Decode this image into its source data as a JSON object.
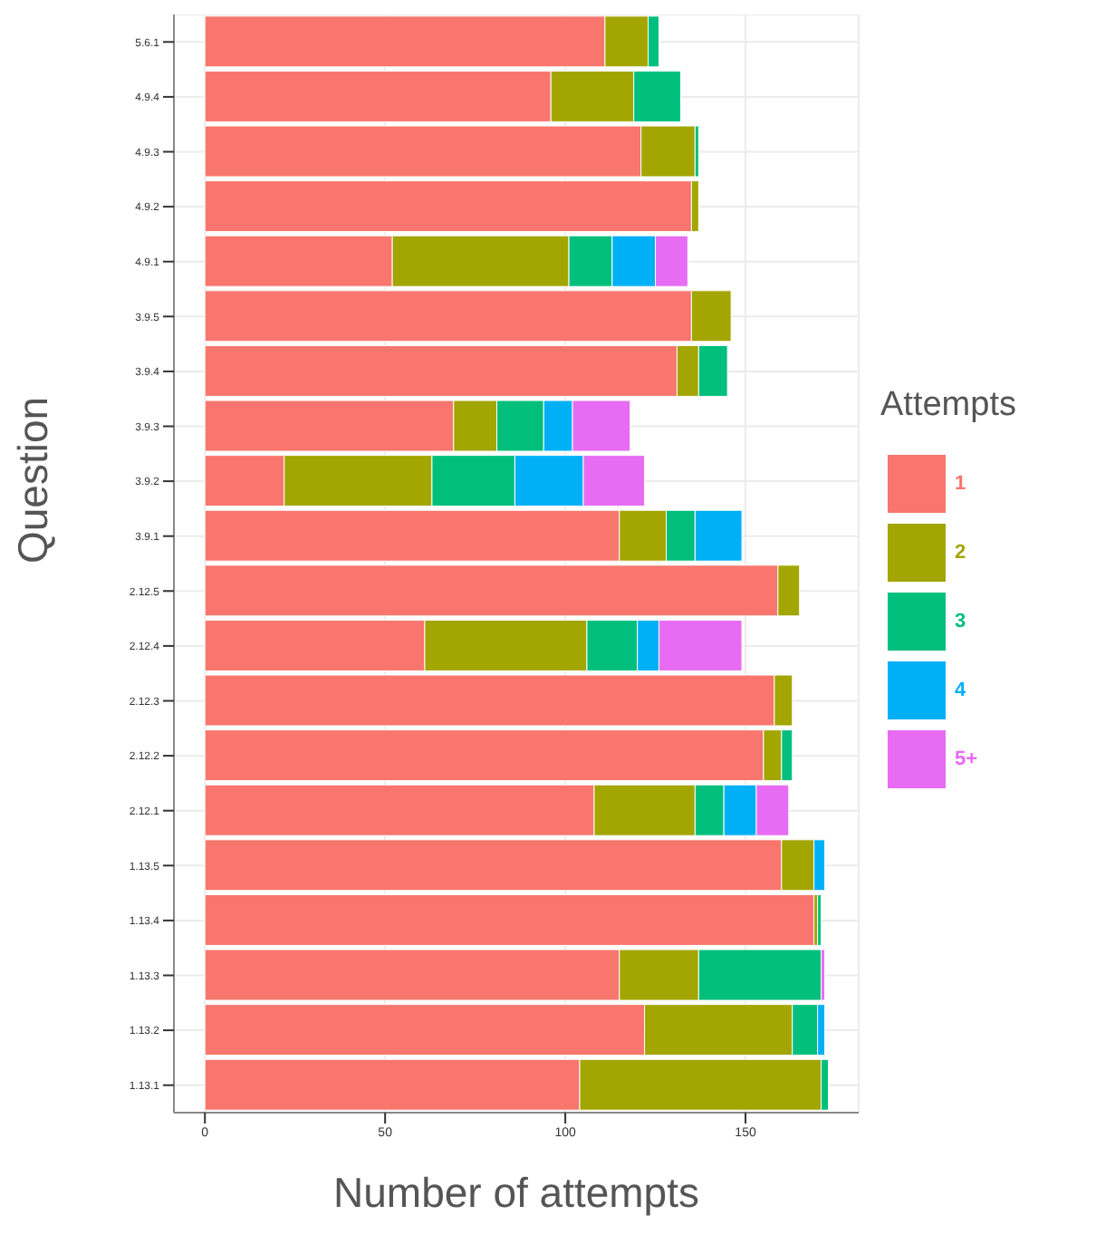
{
  "chart_data": {
    "type": "bar",
    "orientation": "horizontal",
    "stacked": true,
    "xlabel": "Number of attempts",
    "ylabel": "Question",
    "legend_title": "Attempts",
    "legend": "right",
    "grid": true,
    "categories": [
      "5.6.1",
      "4.9.4",
      "4.9.3",
      "4.9.2",
      "4.9.1",
      "3.9.5",
      "3.9.4",
      "3.9.3",
      "3.9.2",
      "3.9.1",
      "2.12.5",
      "2.12.4",
      "2.12.3",
      "2.12.2",
      "2.12.1",
      "1.13.5",
      "1.13.4",
      "1.13.3",
      "1.13.2",
      "1.13.1"
    ],
    "xlim": [
      -8.6,
      181.4
    ],
    "xticks": [
      0,
      50,
      100,
      150
    ],
    "series": [
      {
        "name": "1",
        "color": "#f8766d",
        "values": [
          111,
          96,
          121,
          135,
          52,
          135,
          131,
          69,
          22,
          115,
          159,
          61,
          158,
          155,
          108,
          160,
          169,
          115,
          122,
          104
        ]
      },
      {
        "name": "2",
        "color": "#a3a500",
        "values": [
          12,
          23,
          15,
          2,
          49,
          11,
          6,
          12,
          41,
          13,
          6,
          45,
          5,
          5,
          28,
          9,
          1,
          22,
          41,
          67
        ]
      },
      {
        "name": "3",
        "color": "#00bf7d",
        "values": [
          3,
          13,
          1,
          null,
          12,
          null,
          8,
          13,
          23,
          8,
          null,
          14,
          null,
          3,
          8,
          null,
          1,
          34,
          7,
          2
        ]
      },
      {
        "name": "4",
        "color": "#00b0f6",
        "values": [
          null,
          null,
          null,
          null,
          12,
          null,
          null,
          8,
          19,
          13,
          null,
          6,
          null,
          null,
          9,
          3,
          null,
          null,
          2,
          null
        ]
      },
      {
        "name": "5+",
        "color": "#e76bf3",
        "values": [
          null,
          null,
          null,
          null,
          9,
          null,
          null,
          16,
          17,
          null,
          null,
          23,
          null,
          null,
          9,
          null,
          null,
          1,
          null,
          null
        ]
      }
    ]
  }
}
